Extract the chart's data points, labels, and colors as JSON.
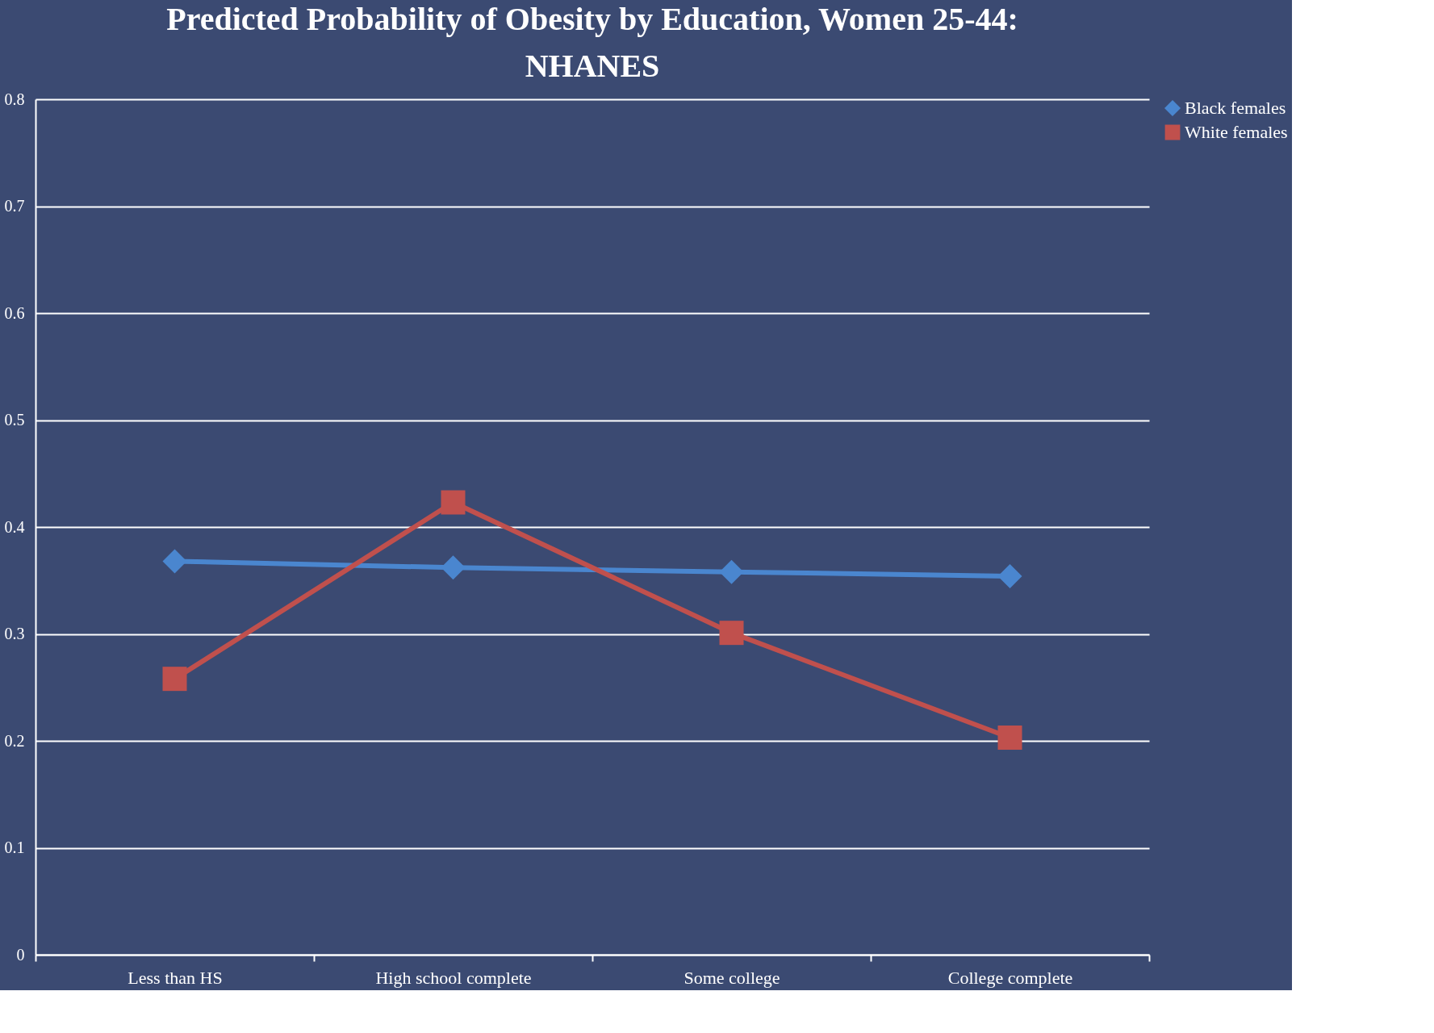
{
  "chart_data": {
    "type": "line",
    "title": [
      "Predicted Probability of Obesity by Education, Women 25-44:",
      "NHANES"
    ],
    "categories": [
      "Less than HS",
      "High school complete",
      "Some college",
      "College complete"
    ],
    "series": [
      {
        "name": "Black females",
        "color": "#4a86cf",
        "marker": "diamond",
        "values": [
          0.368,
          0.362,
          0.358,
          0.354
        ]
      },
      {
        "name": "White females",
        "color": "#c0504d",
        "marker": "square",
        "values": [
          0.258,
          0.423,
          0.301,
          0.203
        ]
      }
    ],
    "ylim": [
      0,
      0.8
    ],
    "yticks": [
      0,
      0.1,
      0.2,
      0.3,
      0.4,
      0.5,
      0.6,
      0.7,
      0.8
    ],
    "grid": "y",
    "legend": "right",
    "line_style": "solid"
  }
}
